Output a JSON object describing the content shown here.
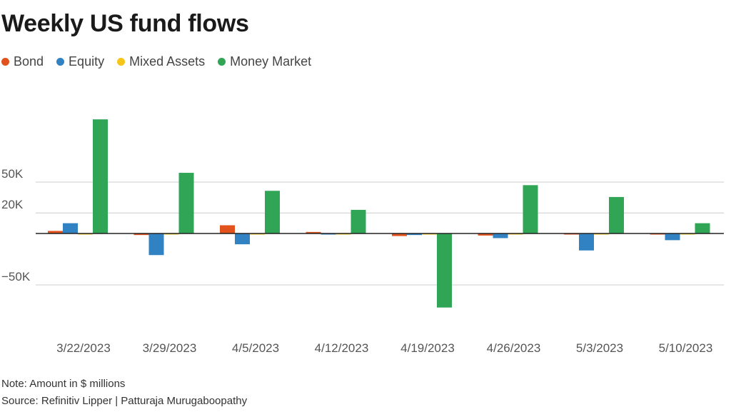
{
  "title": "Weekly US fund flows",
  "legend": [
    {
      "label": "Bond",
      "color": "#e2521d"
    },
    {
      "label": "Equity",
      "color": "#3082c2"
    },
    {
      "label": "Mixed Assets",
      "color": "#f5c518"
    },
    {
      "label": "Money Market",
      "color": "#30a555"
    }
  ],
  "note": "Note: Amount in $ millions",
  "source": "Source: Refinitiv Lipper | Patturaja Murugaboopathy",
  "chart_data": {
    "type": "bar",
    "title": "Weekly US fund flows",
    "xlabel": "",
    "ylabel": "",
    "ylim": [
      -75000,
      115000
    ],
    "yticks": [
      {
        "value": 50000,
        "label": "50K"
      },
      {
        "value": 20000,
        "label": "20K"
      },
      {
        "value": -50000,
        "label": "−50K"
      }
    ],
    "categories": [
      "3/22/2023",
      "3/29/2023",
      "4/5/2023",
      "4/12/2023",
      "4/19/2023",
      "4/26/2023",
      "5/3/2023",
      "5/10/2023"
    ],
    "series": [
      {
        "name": "Bond",
        "color": "#e2521d",
        "values": [
          2500,
          -1500,
          8000,
          1500,
          -2500,
          -2000,
          -500,
          -500
        ]
      },
      {
        "name": "Equity",
        "color": "#3082c2",
        "values": [
          10000,
          -21000,
          -10500,
          -1000,
          -1500,
          -4500,
          -16500,
          -6500
        ]
      },
      {
        "name": "Mixed Assets",
        "color": "#f5c518",
        "values": [
          -500,
          -500,
          -500,
          -500,
          -500,
          -500,
          -500,
          -500
        ]
      },
      {
        "name": "Money Market",
        "color": "#30a555",
        "values": [
          111000,
          59000,
          41500,
          23000,
          -72000,
          47000,
          35500,
          10000
        ]
      }
    ]
  }
}
